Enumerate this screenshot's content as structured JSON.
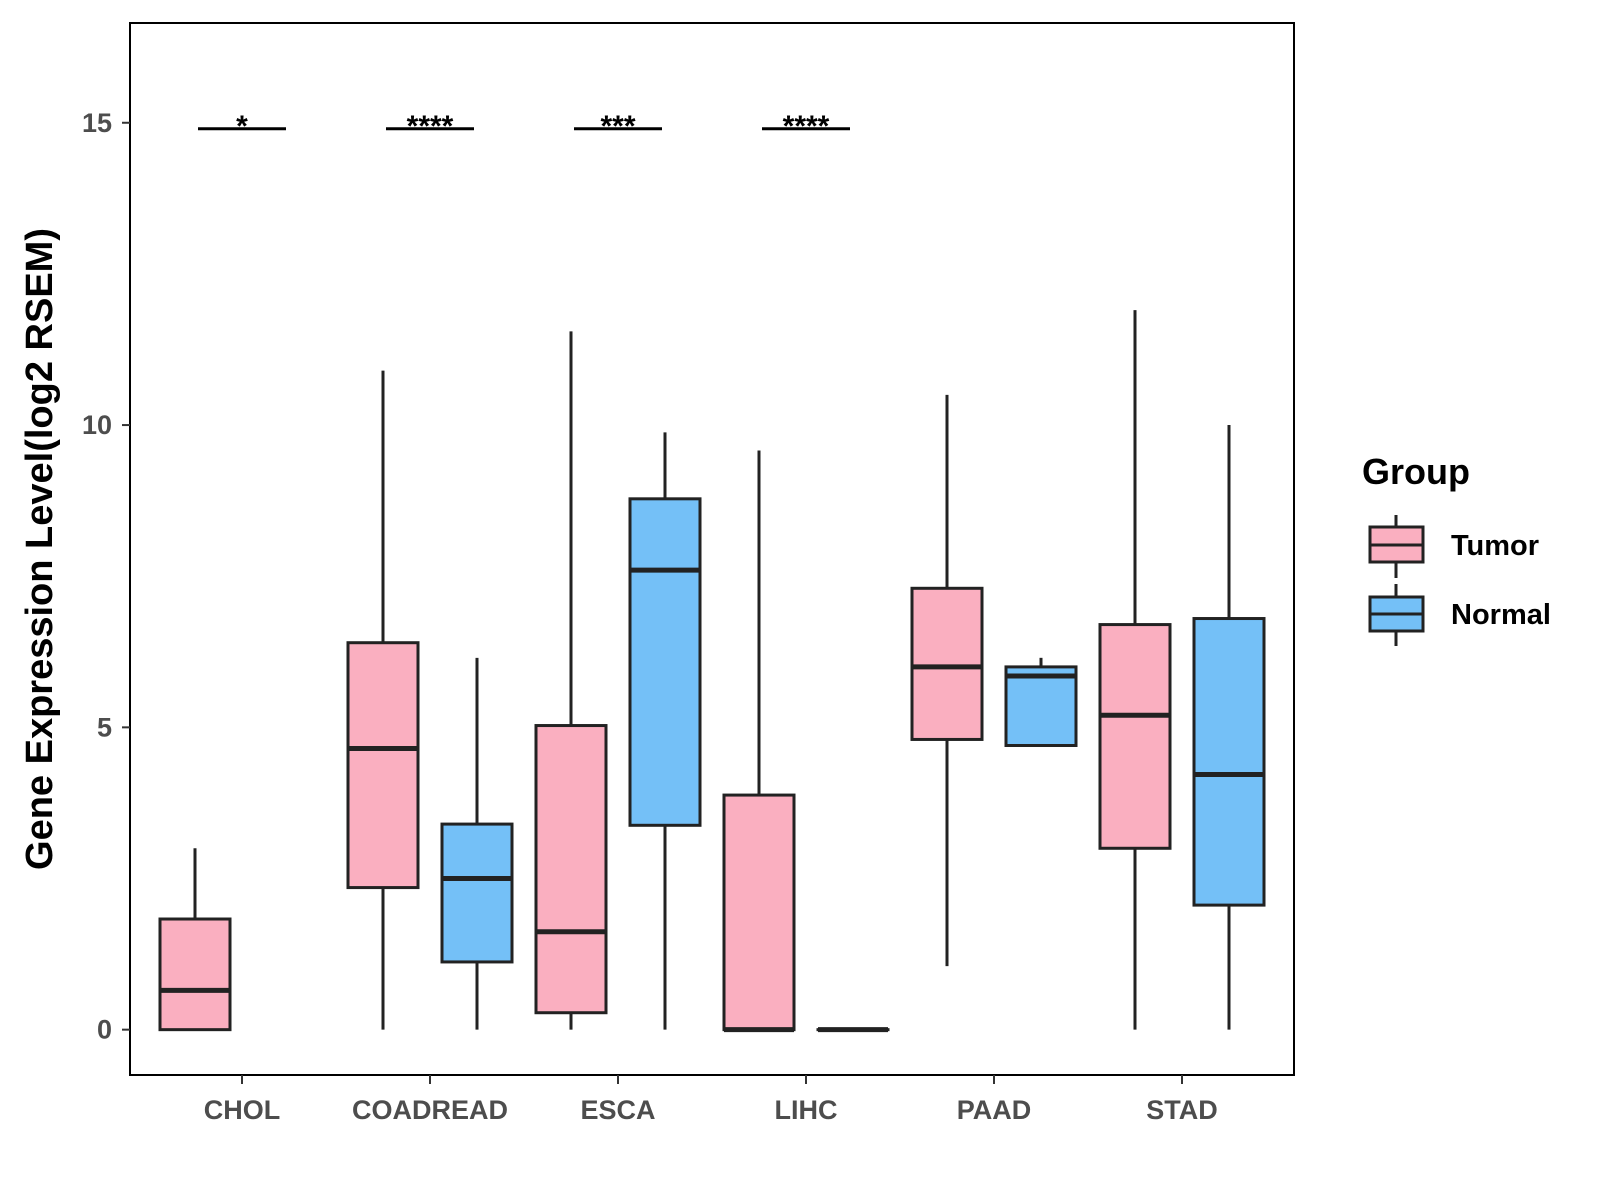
{
  "chart_data": {
    "type": "boxplot",
    "title": "",
    "xlabel": "",
    "ylabel": "Gene Expression Level(log2 RSEM)",
    "ylim": [
      -0.75,
      16.65
    ],
    "yticks": [
      0,
      5,
      10,
      15
    ],
    "grid": false,
    "legend": {
      "title": "Group",
      "position": "right"
    },
    "categories": [
      "CHOL",
      "COADREAD",
      "ESCA",
      "LIHC",
      "PAAD",
      "STAD"
    ],
    "series": [
      {
        "name": "Tumor",
        "color": "#FAAFC0",
        "boxes": [
          {
            "category": "CHOL",
            "min": 0,
            "q1": 0,
            "median": 0.65,
            "q3": 1.83,
            "max": 3.0
          },
          {
            "category": "COADREAD",
            "min": 0,
            "q1": 2.35,
            "median": 4.65,
            "q3": 6.4,
            "max": 10.9
          },
          {
            "category": "ESCA",
            "min": 0,
            "q1": 0.28,
            "median": 1.62,
            "q3": 5.03,
            "max": 11.55
          },
          {
            "category": "LIHC",
            "min": 0,
            "q1": 0,
            "median": 0,
            "q3": 3.88,
            "max": 9.58
          },
          {
            "category": "PAAD",
            "min": 1.05,
            "q1": 4.8,
            "median": 6.0,
            "q3": 7.3,
            "max": 10.5
          },
          {
            "category": "STAD",
            "min": 0,
            "q1": 3.0,
            "median": 5.2,
            "q3": 6.7,
            "max": 11.9
          }
        ]
      },
      {
        "name": "Normal",
        "color": "#74C0F7",
        "boxes": [
          {
            "category": "COADREAD",
            "min": 0,
            "q1": 1.12,
            "median": 2.5,
            "q3": 3.4,
            "max": 6.15
          },
          {
            "category": "ESCA",
            "min": 0,
            "q1": 3.38,
            "median": 7.6,
            "q3": 8.78,
            "max": 9.88
          },
          {
            "category": "LIHC",
            "min": 0,
            "q1": 0,
            "median": 0,
            "q3": 0,
            "max": 0
          },
          {
            "category": "PAAD",
            "min": 4.7,
            "q1": 4.7,
            "median": 5.85,
            "q3": 6.0,
            "max": 6.15
          },
          {
            "category": "STAD",
            "min": 0,
            "q1": 2.06,
            "median": 4.22,
            "q3": 6.8,
            "max": 10.0
          }
        ]
      }
    ],
    "significance": [
      {
        "category": "CHOL",
        "label": "*",
        "y": 14.9
      },
      {
        "category": "COADREAD",
        "label": "****",
        "y": 14.9
      },
      {
        "category": "ESCA",
        "label": "***",
        "y": 14.9
      },
      {
        "category": "LIHC",
        "label": "****",
        "y": 14.9
      }
    ]
  }
}
